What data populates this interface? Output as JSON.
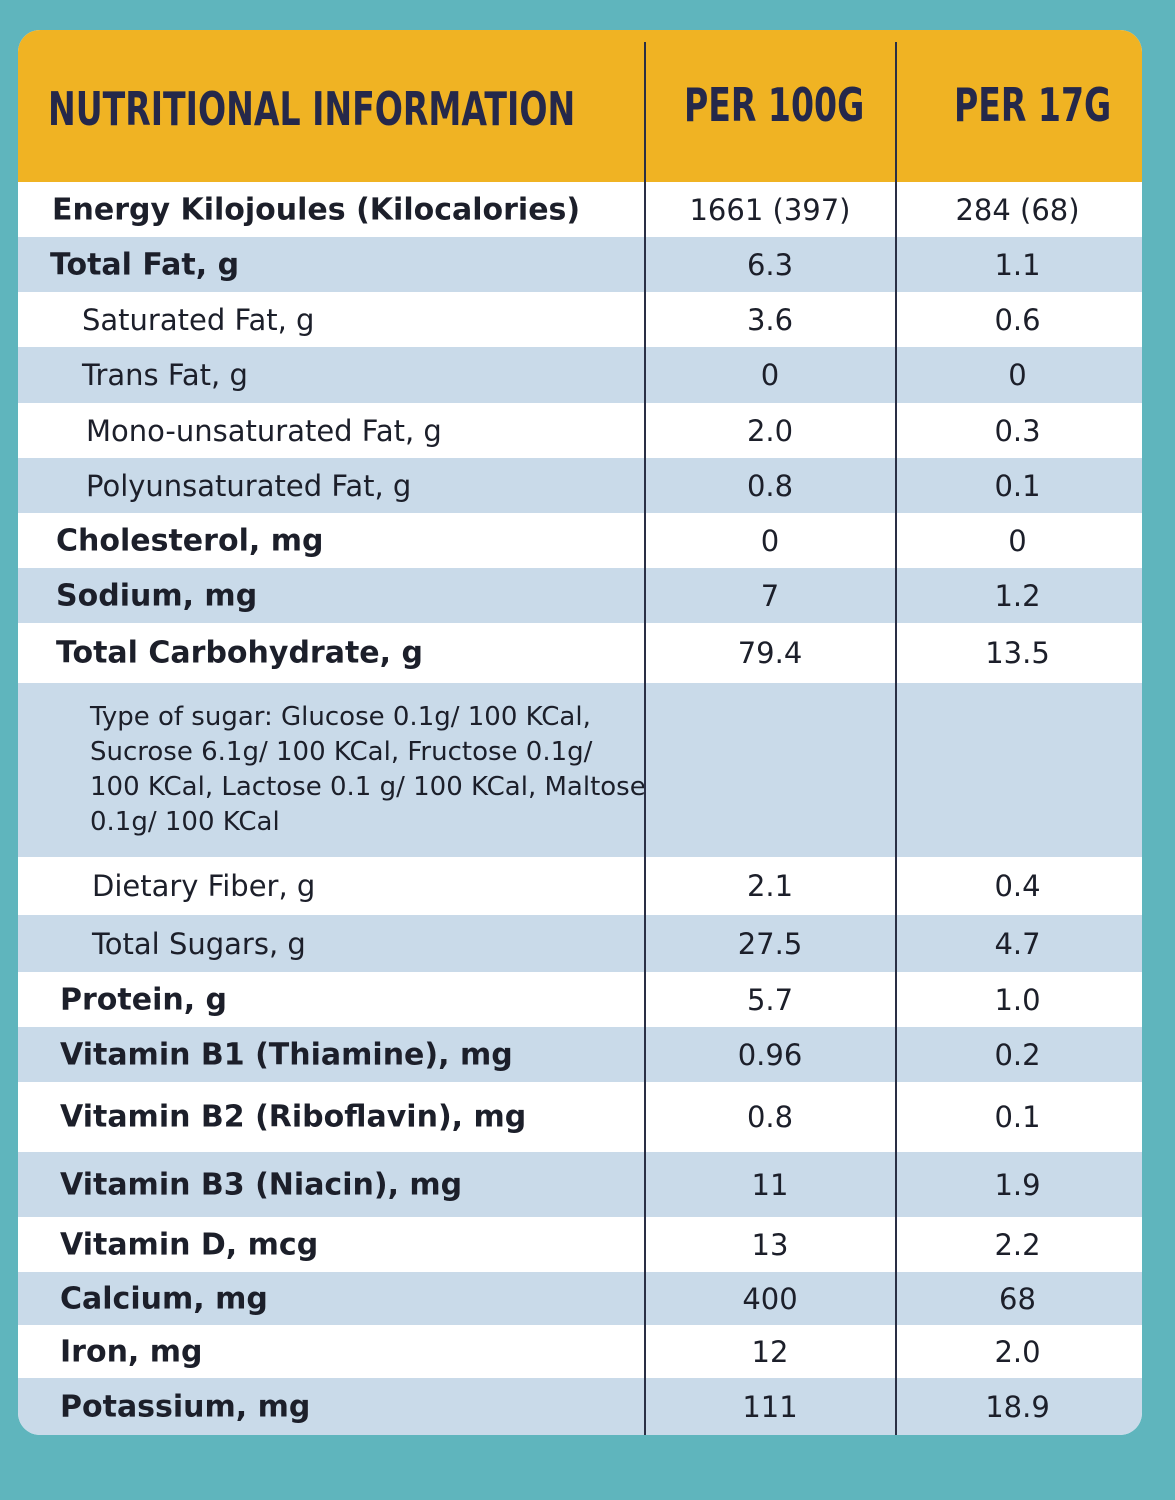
{
  "table": {
    "header": [
      "NUTRITIONAL INFORMATION",
      "PER 100G",
      "PER 17G"
    ],
    "rows": [
      [
        "Energy Kilojoules (Kilocalories)",
        "1661 (397)",
        "284 (68)"
      ],
      [
        "Total Fat, g",
        "6.3",
        "1.1"
      ],
      [
        "Saturated Fat, g",
        "3.6",
        "0.6"
      ],
      [
        "Trans Fat, g",
        "0",
        "0"
      ],
      [
        "Mono-unsaturated Fat, g",
        "2.0",
        "0.3"
      ],
      [
        "Polyunsaturated Fat, g",
        "0.8",
        "0.1"
      ],
      [
        "Cholesterol, mg",
        "0",
        "0"
      ],
      [
        "Sodium, mg",
        "7",
        "1.2"
      ],
      [
        "Total Carbohydrate, g",
        "79.4",
        "13.5"
      ],
      [
        "Type of sugar: Glucose 0.1g/ 100 KCal, Sucrose 6.1g/ 100 KCal, Fructose 0.1g/ 100 KCal, Lactose 0.1 g/ 100 KCal, Maltose 0.1g/ 100 KCal",
        null,
        null
      ],
      [
        "Dietary Fiber, g",
        "2.1",
        "0.4"
      ],
      [
        "Total Sugars, g",
        "27.5",
        "4.7"
      ],
      [
        "Protein, g",
        "5.7",
        "1.0"
      ],
      [
        "Vitamin B1 (Thiamine), mg",
        "0.96",
        "0.2"
      ],
      [
        "Vitamin B2 (Riboflavin), mg",
        "0.8",
        "0.1"
      ],
      [
        "Vitamin B3 (Niacin), mg",
        "11",
        "1.9"
      ],
      [
        "Vitamin D, mcg",
        "13",
        "2.2"
      ],
      [
        "Calcium, mg",
        "400",
        "68"
      ],
      [
        "Iron, mg",
        "12",
        "2.0"
      ],
      [
        "Potassium, mg",
        "111",
        "18.9"
      ]
    ]
  }
}
